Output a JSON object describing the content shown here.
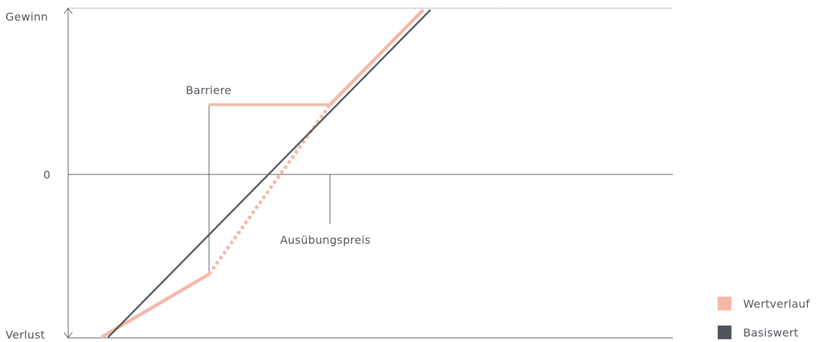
{
  "chart_data": {
    "type": "line",
    "title": "",
    "xlabel": "",
    "ylabel": "",
    "y_tick_labels": {
      "top": "Gewinn",
      "zero": "0",
      "bottom": "Verlust"
    },
    "annotations": {
      "barrier": "Barriere",
      "strike": "Ausübungspreis"
    },
    "x_range": [
      0,
      100
    ],
    "y_range": [
      -100,
      100
    ],
    "barrier_x": 23.3,
    "strike_x": 43.3,
    "series": [
      {
        "name": "Wertverlauf",
        "color": "#f6b9a9",
        "points": [
          [
            5.5,
            -98
          ],
          [
            23.3,
            -60
          ],
          [
            43.3,
            42
          ],
          [
            58.7,
            99
          ]
        ],
        "knock_in_points": [
          [
            23.3,
            -60
          ],
          [
            43.3,
            42
          ]
        ],
        "cap_points": [
          [
            23.3,
            42
          ],
          [
            43.3,
            42
          ]
        ]
      },
      {
        "name": "Basiswert",
        "color": "#50555c",
        "points": [
          [
            6.6,
            -98
          ],
          [
            59.9,
            99
          ]
        ]
      }
    ],
    "legend": {
      "position": "bottom-right",
      "entries": [
        "Wertverlauf",
        "Basiswert"
      ]
    }
  }
}
